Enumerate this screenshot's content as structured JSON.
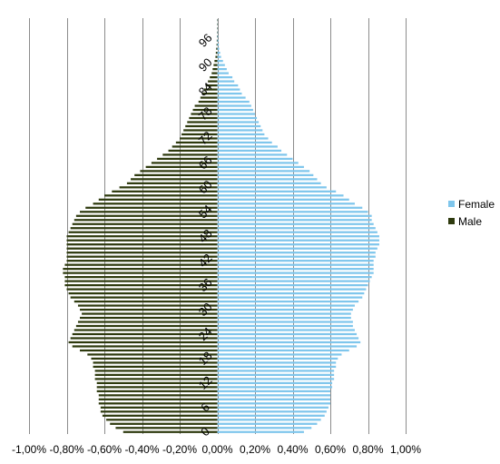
{
  "chart_data": {
    "type": "bar",
    "orientation": "horizontal",
    "x_tick_labels": [
      "-1,00%",
      "-0,80%",
      "-0,60%",
      "-0,40%",
      "-0,20%",
      "0,00%",
      "0,20%",
      "0,40%",
      "0,60%",
      "0,80%",
      "1,00%"
    ],
    "xlim": [
      -1.0,
      1.0
    ],
    "y_tick_labels": [
      "0",
      "6",
      "12",
      "18",
      "24",
      "30",
      "36",
      "42",
      "48",
      "54",
      "60",
      "66",
      "72",
      "78",
      "84",
      "90",
      "96"
    ],
    "ages": [
      0,
      1,
      2,
      3,
      4,
      5,
      6,
      7,
      8,
      9,
      10,
      11,
      12,
      13,
      14,
      15,
      16,
      17,
      18,
      19,
      20,
      21,
      22,
      23,
      24,
      25,
      26,
      27,
      28,
      29,
      30,
      31,
      32,
      33,
      34,
      35,
      36,
      37,
      38,
      39,
      40,
      41,
      42,
      43,
      44,
      45,
      46,
      47,
      48,
      49,
      50,
      51,
      52,
      53,
      54,
      55,
      56,
      57,
      58,
      59,
      60,
      61,
      62,
      63,
      64,
      65,
      66,
      67,
      68,
      69,
      70,
      71,
      72,
      73,
      74,
      75,
      76,
      77,
      78,
      79,
      80,
      81,
      82,
      83,
      84,
      85,
      86,
      87,
      88,
      89,
      90,
      91,
      92,
      93,
      94,
      95,
      96,
      97,
      98,
      99,
      100,
      101
    ],
    "grid_x": true,
    "legend_position": "right",
    "series": [
      {
        "name": "Female",
        "color": "#7fc6ec",
        "values": [
          0.46,
          0.5,
          0.53,
          0.55,
          0.57,
          0.58,
          0.59,
          0.6,
          0.6,
          0.6,
          0.6,
          0.61,
          0.61,
          0.62,
          0.62,
          0.62,
          0.63,
          0.63,
          0.64,
          0.66,
          0.7,
          0.74,
          0.76,
          0.75,
          0.74,
          0.73,
          0.72,
          0.72,
          0.71,
          0.71,
          0.72,
          0.73,
          0.75,
          0.77,
          0.78,
          0.79,
          0.8,
          0.81,
          0.82,
          0.83,
          0.83,
          0.83,
          0.83,
          0.84,
          0.84,
          0.85,
          0.86,
          0.86,
          0.86,
          0.85,
          0.84,
          0.83,
          0.82,
          0.82,
          0.8,
          0.77,
          0.73,
          0.7,
          0.67,
          0.63,
          0.58,
          0.55,
          0.53,
          0.51,
          0.49,
          0.46,
          0.43,
          0.4,
          0.37,
          0.34,
          0.32,
          0.29,
          0.27,
          0.25,
          0.24,
          0.23,
          0.22,
          0.21,
          0.2,
          0.19,
          0.18,
          0.17,
          0.15,
          0.13,
          0.12,
          0.11,
          0.09,
          0.08,
          0.06,
          0.05,
          0.04,
          0.03,
          0.02,
          0.015,
          0.01,
          0.008,
          0.006,
          0.004,
          0.003,
          0.002,
          0.001,
          0.001
        ]
      },
      {
        "name": "Male",
        "color": "#2e3a0e",
        "values": [
          -0.5,
          -0.54,
          -0.57,
          -0.59,
          -0.61,
          -0.62,
          -0.62,
          -0.63,
          -0.63,
          -0.63,
          -0.64,
          -0.64,
          -0.64,
          -0.65,
          -0.65,
          -0.65,
          -0.66,
          -0.66,
          -0.67,
          -0.69,
          -0.73,
          -0.77,
          -0.79,
          -0.78,
          -0.77,
          -0.76,
          -0.75,
          -0.74,
          -0.73,
          -0.72,
          -0.73,
          -0.74,
          -0.76,
          -0.78,
          -0.79,
          -0.8,
          -0.81,
          -0.81,
          -0.81,
          -0.82,
          -0.82,
          -0.81,
          -0.8,
          -0.8,
          -0.8,
          -0.8,
          -0.8,
          -0.8,
          -0.8,
          -0.79,
          -0.78,
          -0.77,
          -0.76,
          -0.75,
          -0.73,
          -0.7,
          -0.66,
          -0.63,
          -0.6,
          -0.56,
          -0.52,
          -0.48,
          -0.46,
          -0.44,
          -0.41,
          -0.38,
          -0.35,
          -0.32,
          -0.29,
          -0.26,
          -0.24,
          -0.22,
          -0.2,
          -0.19,
          -0.18,
          -0.17,
          -0.16,
          -0.15,
          -0.14,
          -0.13,
          -0.12,
          -0.1,
          -0.09,
          -0.08,
          -0.07,
          -0.06,
          -0.05,
          -0.04,
          -0.03,
          -0.025,
          -0.02,
          -0.015,
          -0.01,
          -0.008,
          -0.006,
          -0.004,
          -0.003,
          -0.002,
          -0.001,
          -0.001,
          -0.001,
          -0.001
        ]
      }
    ]
  }
}
